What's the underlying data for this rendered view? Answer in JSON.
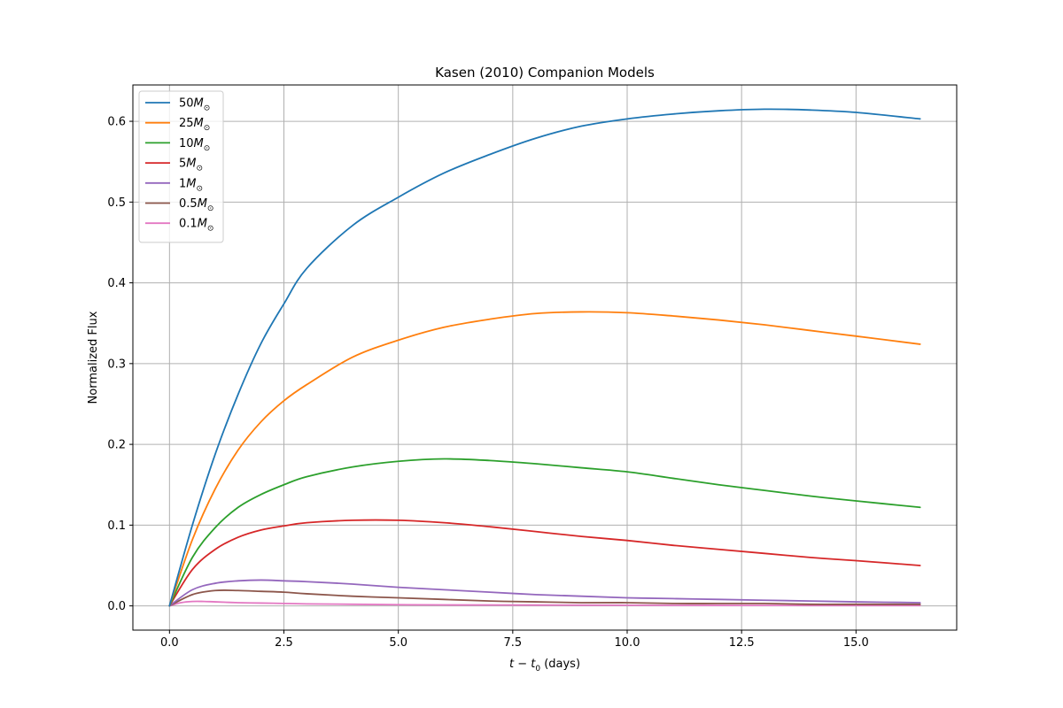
{
  "chart_data": {
    "type": "line",
    "title": "Kasen (2010) Companion Models",
    "xlabel": "t − t",
    "xlabel_sub": "0",
    "xlabel_unit": " (days)",
    "ylabel": "Normalized Flux",
    "xlim": [
      -0.8,
      17.2
    ],
    "ylim": [
      -0.03,
      0.645
    ],
    "xticks": [
      0.0,
      2.5,
      5.0,
      7.5,
      10.0,
      12.5,
      15.0
    ],
    "xtick_labels": [
      "0.0",
      "2.5",
      "5.0",
      "7.5",
      "10.0",
      "12.5",
      "15.0"
    ],
    "yticks": [
      0.0,
      0.1,
      0.2,
      0.3,
      0.4,
      0.5,
      0.6
    ],
    "ytick_labels": [
      "0.0",
      "0.1",
      "0.2",
      "0.3",
      "0.4",
      "0.5",
      "0.6"
    ],
    "grid": true,
    "legend_position": "top-left",
    "legend_unit": "M",
    "legend_unit_sub": "⊙",
    "series": [
      {
        "name": "50",
        "color": "#1f77b4",
        "x": [
          0,
          0.5,
          1,
          1.5,
          2,
          2.5,
          3,
          4,
          5,
          6,
          7,
          8,
          9,
          10,
          11,
          12,
          13,
          14,
          15,
          16.4
        ],
        "y": [
          0,
          0.1,
          0.188,
          0.262,
          0.325,
          0.374,
          0.418,
          0.471,
          0.506,
          0.536,
          0.559,
          0.579,
          0.594,
          0.603,
          0.609,
          0.613,
          0.615,
          0.614,
          0.611,
          0.603
        ]
      },
      {
        "name": "25",
        "color": "#ff7f0e",
        "x": [
          0,
          0.5,
          1,
          1.5,
          2,
          2.5,
          3,
          4,
          5,
          6,
          7,
          8,
          9,
          10,
          11,
          12,
          13,
          14,
          15,
          16.4
        ],
        "y": [
          0,
          0.082,
          0.145,
          0.193,
          0.228,
          0.254,
          0.274,
          0.308,
          0.329,
          0.345,
          0.355,
          0.362,
          0.364,
          0.363,
          0.359,
          0.354,
          0.348,
          0.341,
          0.334,
          0.324
        ]
      },
      {
        "name": "10",
        "color": "#2ca02c",
        "x": [
          0,
          0.5,
          1,
          1.5,
          2,
          2.5,
          3,
          4,
          5,
          6,
          7,
          8,
          9,
          10,
          11,
          12,
          13,
          14,
          15,
          16.4
        ],
        "y": [
          0,
          0.06,
          0.097,
          0.122,
          0.138,
          0.15,
          0.16,
          0.172,
          0.179,
          0.182,
          0.18,
          0.176,
          0.171,
          0.166,
          0.158,
          0.15,
          0.143,
          0.136,
          0.13,
          0.122
        ]
      },
      {
        "name": "5",
        "color": "#d62728",
        "x": [
          0,
          0.5,
          1,
          1.5,
          2,
          2.5,
          3,
          4,
          5,
          6,
          7,
          8,
          9,
          10,
          11,
          12,
          13,
          14,
          15,
          16.4
        ],
        "y": [
          0,
          0.045,
          0.07,
          0.085,
          0.094,
          0.099,
          0.103,
          0.106,
          0.106,
          0.103,
          0.098,
          0.092,
          0.086,
          0.081,
          0.075,
          0.07,
          0.065,
          0.06,
          0.056,
          0.05
        ]
      },
      {
        "name": "1",
        "color": "#9467bd",
        "x": [
          0,
          0.5,
          1,
          1.5,
          2,
          2.5,
          3,
          4,
          5,
          6,
          7,
          8,
          9,
          10,
          11,
          12,
          13,
          14,
          15,
          16.4
        ],
        "y": [
          0,
          0.02,
          0.028,
          0.031,
          0.032,
          0.031,
          0.03,
          0.027,
          0.023,
          0.02,
          0.017,
          0.014,
          0.012,
          0.01,
          0.009,
          0.008,
          0.007,
          0.006,
          0.005,
          0.004
        ]
      },
      {
        "name": "0.5",
        "color": "#8c564b",
        "x": [
          0,
          0.5,
          1,
          1.5,
          2,
          2.5,
          3,
          4,
          5,
          6,
          7,
          8,
          9,
          10,
          11,
          12,
          13,
          14,
          15,
          16.4
        ],
        "y": [
          0,
          0.014,
          0.019,
          0.019,
          0.018,
          0.017,
          0.015,
          0.012,
          0.01,
          0.008,
          0.006,
          0.005,
          0.004,
          0.004,
          0.003,
          0.003,
          0.003,
          0.002,
          0.002,
          0.002
        ]
      },
      {
        "name": "0.1",
        "color": "#e377c2",
        "x": [
          0,
          0.25,
          0.5,
          0.75,
          1,
          1.5,
          2,
          2.5,
          3,
          4,
          5,
          6,
          8,
          10,
          12,
          14,
          16.4
        ],
        "y": [
          0,
          0.004,
          0.0055,
          0.0055,
          0.005,
          0.004,
          0.0035,
          0.003,
          0.0025,
          0.002,
          0.0015,
          0.0012,
          0.001,
          0.0008,
          0.0006,
          0.0005,
          0.0004
        ]
      }
    ]
  }
}
